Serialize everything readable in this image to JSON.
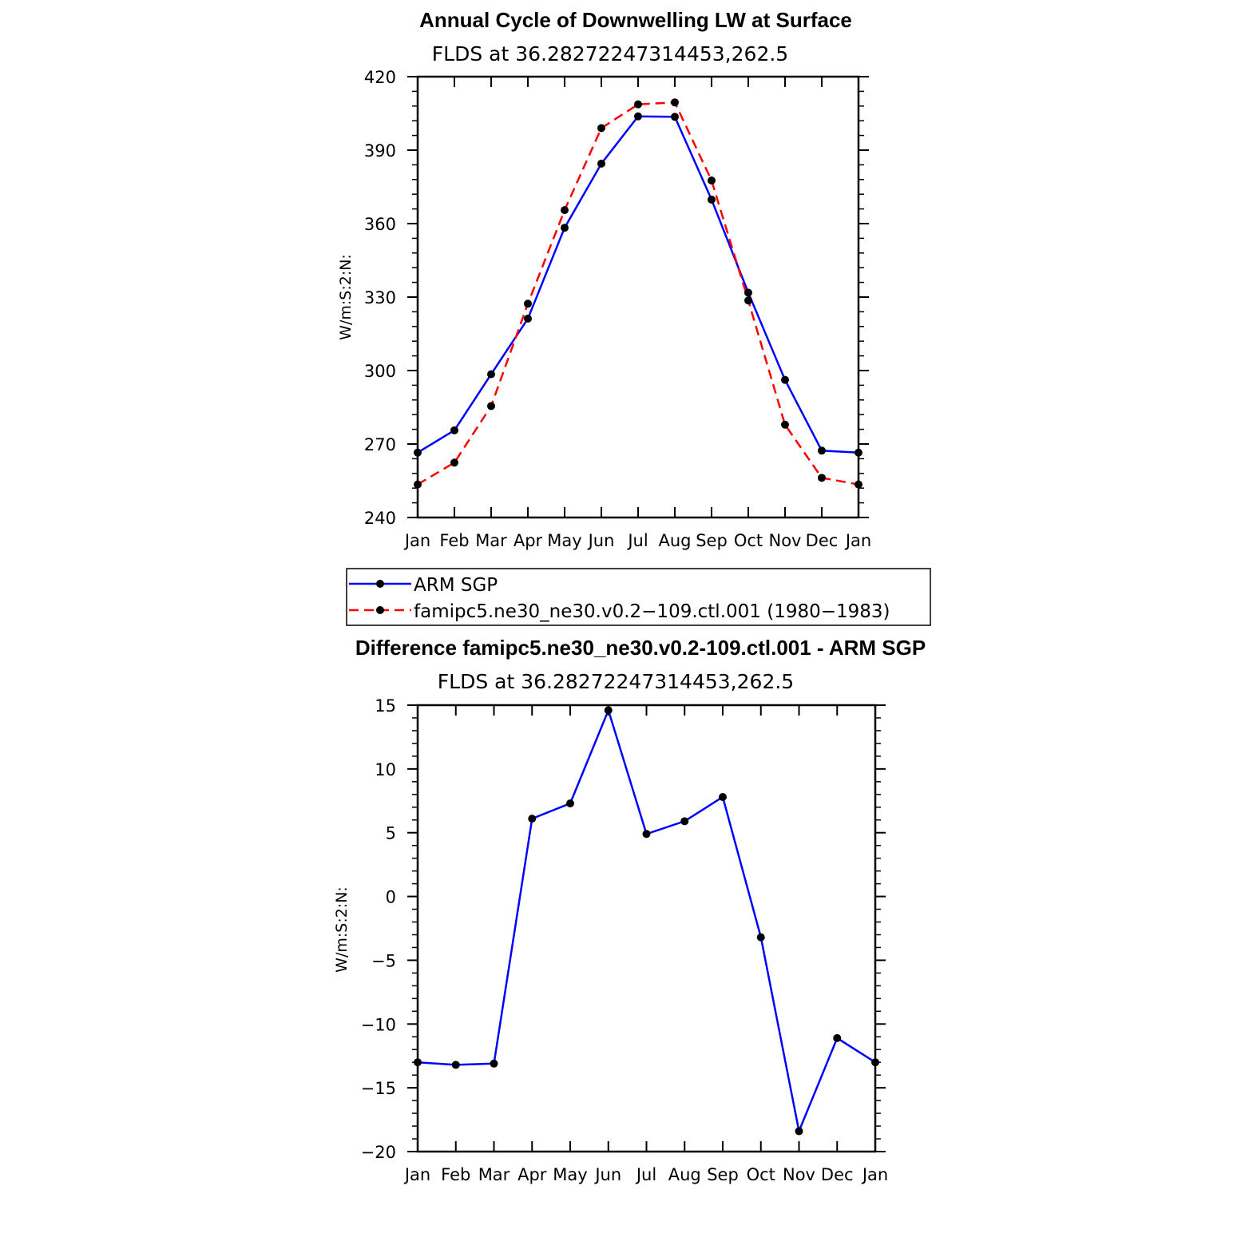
{
  "chart_data": [
    {
      "type": "line",
      "title": "Annual Cycle of Downwelling LW at Surface",
      "subtitle": "FLDS at 36.28272247314453,262.5",
      "ylabel": "W/m:S:2:N:",
      "categories": [
        "Jan",
        "Feb",
        "Mar",
        "Apr",
        "May",
        "Jun",
        "Jul",
        "Aug",
        "Sep",
        "Oct",
        "Nov",
        "Dec",
        "Jan"
      ],
      "ylim": [
        240,
        420
      ],
      "yticks": [
        "240",
        "270",
        "300",
        "330",
        "360",
        "390",
        "420"
      ],
      "series": [
        {
          "name": "ARM SGP",
          "color": "#0000ff",
          "style": "solid",
          "values": [
            266.5,
            275.6,
            298.5,
            321.2,
            358.3,
            384.5,
            403.8,
            403.6,
            369.8,
            331.8,
            296.2,
            267.3,
            266.5
          ]
        },
        {
          "name": "famipc5.ne30_ne30.v0.2−109.ctl.001 (1980−1983)",
          "color": "#ff0000",
          "style": "dashed",
          "values": [
            253.5,
            262.4,
            285.5,
            327.3,
            365.5,
            399.0,
            408.7,
            409.5,
            377.6,
            328.6,
            277.9,
            256.2,
            253.5
          ]
        }
      ]
    },
    {
      "type": "line",
      "title": "Difference famipc5.ne30_ne30.v0.2-109.ctl.001 - ARM SGP",
      "subtitle": "FLDS at 36.28272247314453,262.5",
      "ylabel": "W/m:S:2:N:",
      "categories": [
        "Jan",
        "Feb",
        "Mar",
        "Apr",
        "May",
        "Jun",
        "Jul",
        "Aug",
        "Sep",
        "Oct",
        "Nov",
        "Dec",
        "Jan"
      ],
      "ylim": [
        -20,
        15
      ],
      "yticks": [
        "−20",
        "−15",
        "−10",
        "−5",
        "0",
        "5",
        "10",
        "15"
      ],
      "series": [
        {
          "color": "#0000ff",
          "style": "solid",
          "values": [
            -13.0,
            -13.2,
            -13.1,
            6.1,
            7.3,
            14.6,
            4.9,
            5.9,
            7.8,
            -3.2,
            -18.4,
            -11.1,
            -13.0
          ]
        }
      ]
    }
  ]
}
